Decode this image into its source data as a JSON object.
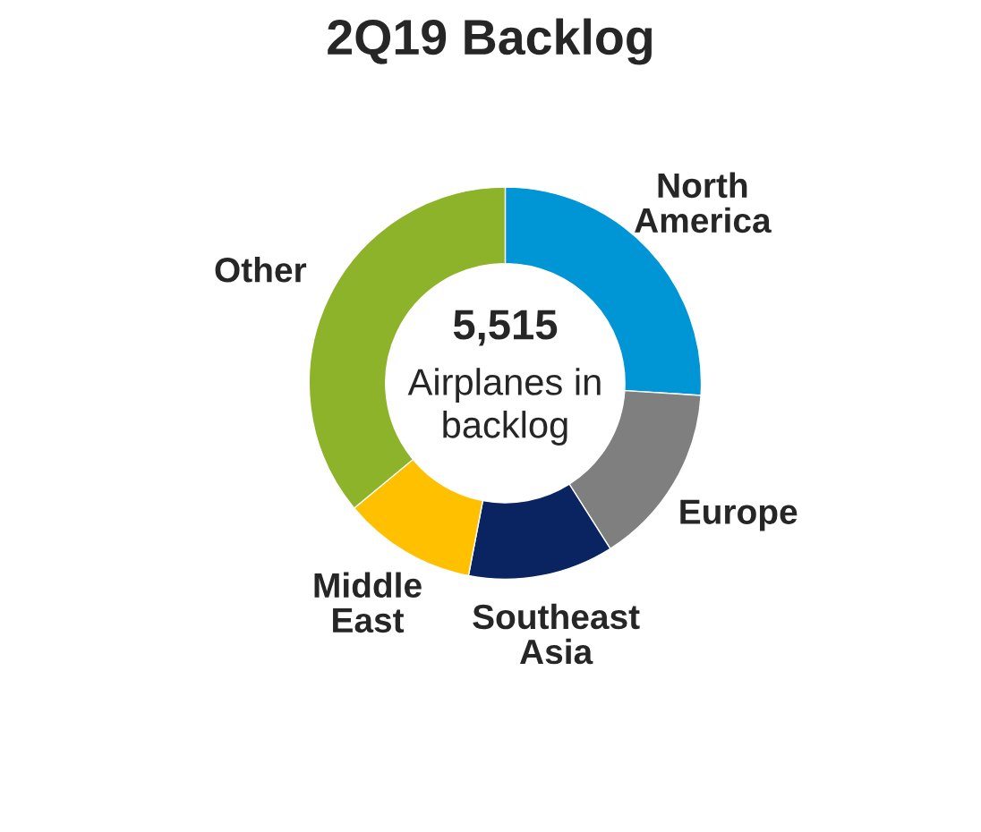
{
  "chart_data": {
    "type": "donut",
    "title": "2Q19 Backlog",
    "categories": [
      "North America",
      "Europe",
      "Southeast Asia",
      "Middle East",
      "Other"
    ],
    "values": [
      26,
      15,
      12,
      11,
      36
    ],
    "colors": [
      "#0096d6",
      "#7f7f7f",
      "#0a2461",
      "#ffc000",
      "#8db32a"
    ],
    "annotations": [
      "5,515",
      "Airplanes in backlog"
    ],
    "legend": false
  }
}
